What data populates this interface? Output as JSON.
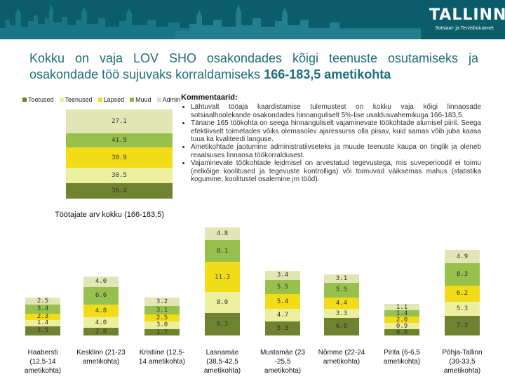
{
  "header": {
    "logo_text": "TALLINN",
    "logo_subtitle": "Sotsiaal- ja Tervishoiuamet"
  },
  "title": {
    "line_normal": "Kokku on vaja LOV SHO osakondades kõigi teenuste osutamiseks ja osakondade töö sujuvaks korraldamiseks",
    "line_bold": "166-183,5 ametikohta"
  },
  "legend": [
    {
      "label": "Toetused",
      "color": "#6d7f2a"
    },
    {
      "label": "Teenused",
      "color": "#e8ee9a"
    },
    {
      "label": "Lapsed",
      "color": "#f4df1e"
    },
    {
      "label": "Muud",
      "color": "#8ab942"
    },
    {
      "label": "Admin",
      "color": "#d8d8d8"
    }
  ],
  "total_chart": {
    "caption": "Töötajate arv kokku (166-183,5)",
    "segments": [
      {
        "category": "Admin",
        "value": "27.1",
        "color": "#e2e6b4"
      },
      {
        "category": "Muud",
        "value": "41.9",
        "color": "#97c04c"
      },
      {
        "category": "Lapsed",
        "value": "38.9",
        "color": "#f2dc17"
      },
      {
        "category": "Teenused",
        "value": "30.5",
        "color": "#ecf09e"
      },
      {
        "category": "Toetused",
        "value": "36.4",
        "color": "#6f8230"
      }
    ]
  },
  "comments": {
    "title": "Kommentaarid:",
    "items": [
      "Lähtuvalt tööaja kaardistamise tulemustest on kokku vaja kõigi linnaosade sotsiaalhoolekande osakondades hinnanguliselt 5%-lise usaldusvahemikuga 166-183,5.",
      "Tänane 165 töökohta on seega hinnanguliselt vajaminevate töökohtade alumisel piiril. Seega efektiivselt toimetades võiks olemasolev ajaressurss olla piisav, kuid samas võib juba kaasa tuua ka kvaliteedi languse.",
      "Ametikohtade jaotumine administratiivseteks ja muude teenuste kaupa on tinglik ja oleneb reaalsuses linnaosa töökorraldusest.",
      "Vajaminevate töökohtade leidmisel on arvestatud tegevustega, mis suveperioodil ei toimu (eelkõige koolitused ja tegevuste kontrolliga) või toimuvad väiksemas mahus (statistika kogumine, koolitustel osalemine jm tööd)."
    ]
  },
  "districts_chart": {
    "type": "bar",
    "categories": [
      "Haabersti (12,5-14 ametikohta)",
      "Kesklinn (21-23 ametikohta)",
      "Kristiine (12,5-14 ametikohta)",
      "Lasnamäe (38,5-42,5 ametikohta)",
      "Mustamäe (23 -25,5 ametikohta)",
      "Nõmme (22-24 ametikohta)",
      "Pirita (6-6,5 ametikohta)",
      "Põhja-Tallinn (30-33,5 ametikohta)"
    ],
    "segment_order": [
      "Admin",
      "Muud",
      "Lapsed",
      "Teenused",
      "Toetused"
    ],
    "colors": {
      "Admin": "#e2e6b4",
      "Muud": "#97c04c",
      "Lapsed": "#f2dc17",
      "Teenused": "#ecf09e",
      "Toetused": "#6f8230"
    },
    "values": [
      [
        "2.5",
        "3.4",
        "2.3",
        "1.4",
        "3.5"
      ],
      [
        "4.0",
        "6.6",
        "4.8",
        "4.0",
        "2.8"
      ],
      [
        "3.2",
        "3.1",
        "2.5",
        "3.0",
        "1.7"
      ],
      [
        "4.8",
        "8.1",
        "11.3",
        "8.0",
        "8.3"
      ],
      [
        "3.4",
        "5.5",
        "5.4",
        "4.7",
        "5.3"
      ],
      [
        "3.1",
        "5.5",
        "4.4",
        "3.3",
        "6.6"
      ],
      [
        "1.1",
        "1.4",
        "2.0",
        "0.9",
        "0.8"
      ],
      [
        "4.9",
        "8.3",
        "6.2",
        "5.3",
        "7.3"
      ]
    ]
  }
}
